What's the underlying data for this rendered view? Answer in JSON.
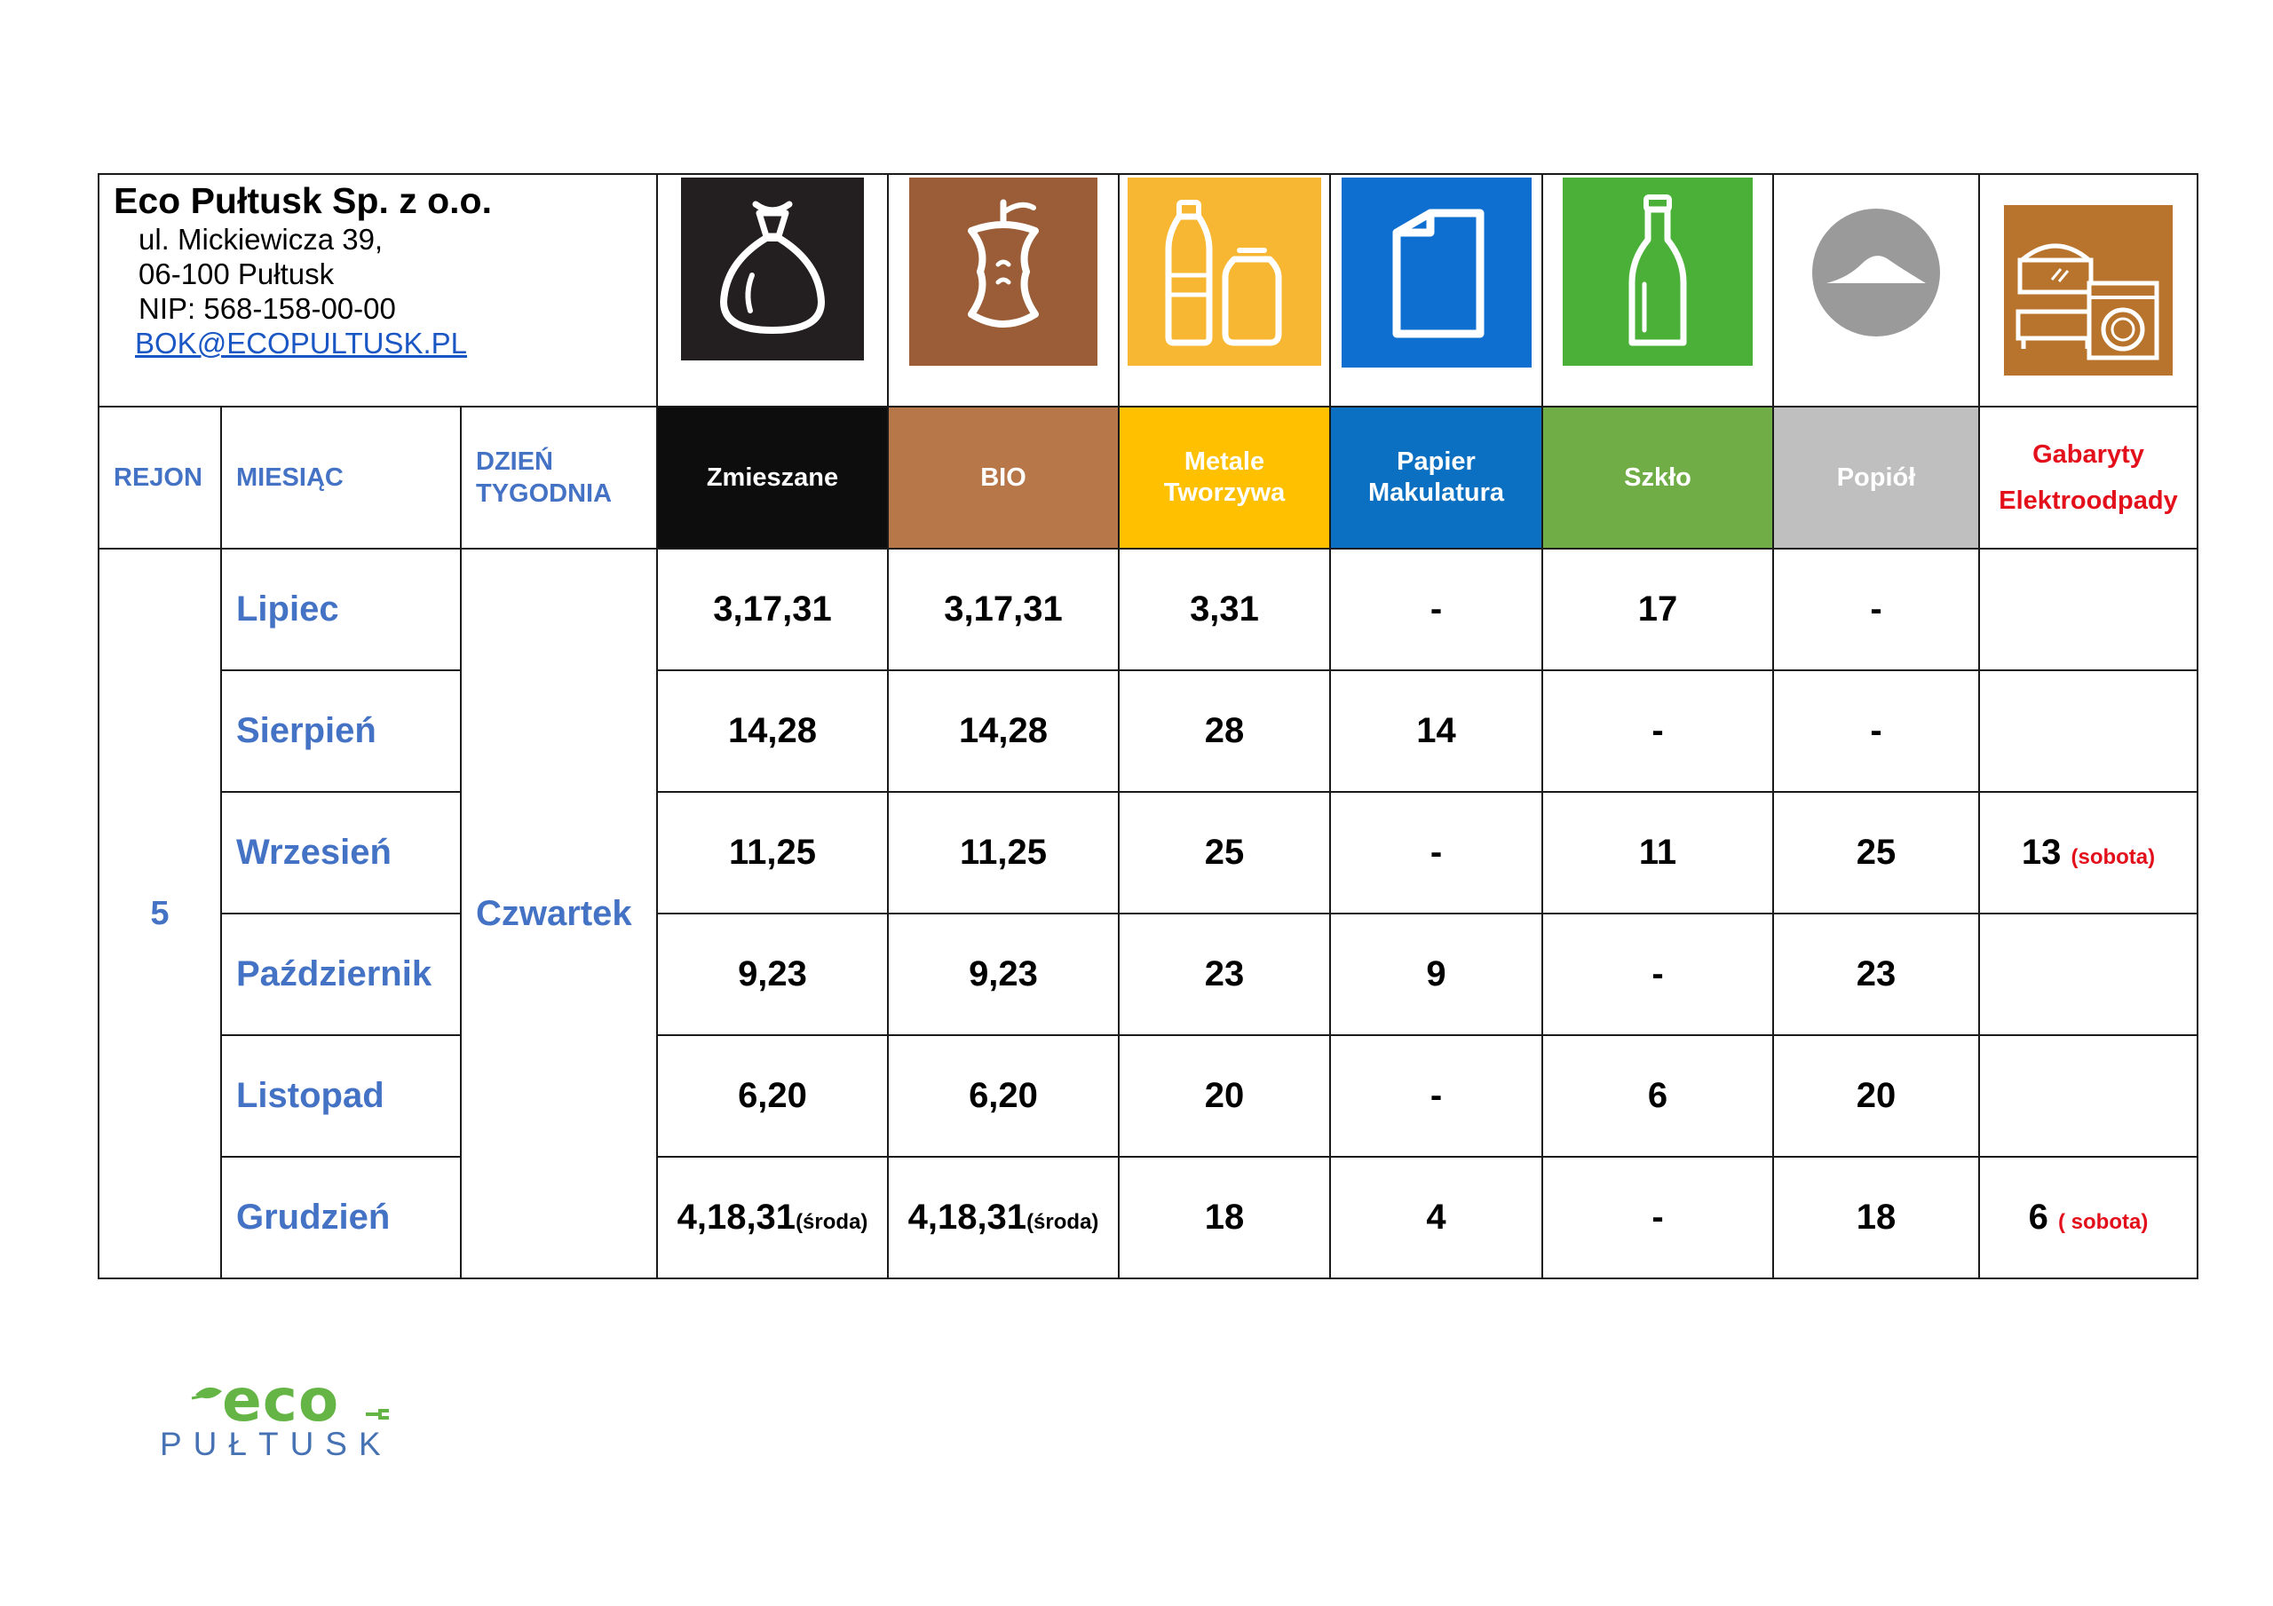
{
  "company": {
    "name": "Eco Pułtusk Sp. z o.o.",
    "street": "ul. Mickiewicza 39,",
    "city": "06-100 Pułtusk",
    "nip": "NIP: 568-158-00-00",
    "email": "BOK@ECOPULTUSK.PL"
  },
  "icons": {
    "mix": "trash-bag-icon",
    "bio": "apple-core-icon",
    "metal": "bottle-and-can-icon",
    "paper": "paper-sheet-icon",
    "glass": "glass-bottle-icon",
    "ash": "ash-pile-icon",
    "bulky": "furniture-washing-machine-icon"
  },
  "colors": {
    "mix": "#0d0d0d",
    "bio": "#b87748",
    "metal": "#ffc000",
    "paper": "#0b70c1",
    "glass": "#70ad47",
    "ash": "#bfbfbf",
    "bulky_text": "#e3101b",
    "label_blue": "#4472c4"
  },
  "headers": {
    "rejon": "REJON",
    "miesiac": "MIESIĄC",
    "dzien_line1": "DZIEŃ",
    "dzien_line2": "TYGODNIA",
    "zmieszane": "Zmieszane",
    "bio": "BIO",
    "metale_line1": "Metale",
    "metale_line2": "Tworzywa",
    "papier_line1": "Papier",
    "papier_line2": "Makulatura",
    "szklo": "Szkło",
    "popiol": "Popiół",
    "gabaryty_line1": "Gabaryty",
    "gabaryty_line2": "Elektroodpady"
  },
  "rejon": "5",
  "day": "Czwartek",
  "rows": [
    {
      "month": "Lipiec",
      "mix": "3,17,31",
      "mix_note": "",
      "bio": "3,17,31",
      "bio_note": "",
      "metal": "3,31",
      "paper": "-",
      "glass": "17",
      "ash": "-",
      "bulky": "",
      "bulky_note": ""
    },
    {
      "month": "Sierpień",
      "mix": "14,28",
      "mix_note": "",
      "bio": "14,28",
      "bio_note": "",
      "metal": "28",
      "paper": "14",
      "glass": "-",
      "ash": "-",
      "bulky": "",
      "bulky_note": ""
    },
    {
      "month": "Wrzesień",
      "mix": "11,25",
      "mix_note": "",
      "bio": "11,25",
      "bio_note": "",
      "metal": "25",
      "paper": "-",
      "glass": "11",
      "ash": "25",
      "bulky": "13",
      "bulky_note": "(sobota)"
    },
    {
      "month": "Październik",
      "mix": "9,23",
      "mix_note": "",
      "bio": "9,23",
      "bio_note": "",
      "metal": "23",
      "paper": "9",
      "glass": "-",
      "ash": "23",
      "bulky": "",
      "bulky_note": ""
    },
    {
      "month": "Listopad",
      "mix": "6,20",
      "mix_note": "",
      "bio": "6,20",
      "bio_note": "",
      "metal": "20",
      "paper": "-",
      "glass": "6",
      "ash": "20",
      "bulky": "",
      "bulky_note": ""
    },
    {
      "month": "Grudzień",
      "mix": "4,18,31",
      "mix_note": "(środa)",
      "bio": "4,18,31",
      "bio_note": "(środa)",
      "metal": "18",
      "paper": "4",
      "glass": "-",
      "ash": "18",
      "bulky": "6",
      "bulky_note": "( sobota)"
    }
  ],
  "logo": {
    "word": "eco",
    "city": "PUŁTUSK"
  }
}
